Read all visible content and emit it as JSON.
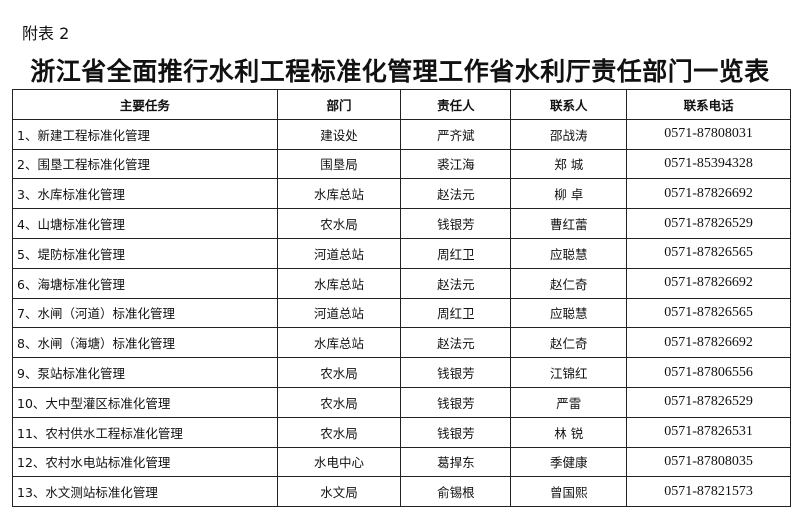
{
  "annex_label": "附表 2",
  "title": "浙江省全面推行水利工程标准化管理工作省水利厅责任部门一览表",
  "table": {
    "headers": [
      "主要任务",
      "部门",
      "责任人",
      "联系人",
      "联系电话"
    ],
    "rows": [
      [
        "1、新建工程标准化管理",
        "建设处",
        "严齐斌",
        "邵战涛",
        "0571-87808031"
      ],
      [
        "2、围垦工程标准化管理",
        "围垦局",
        "裘江海",
        "郑 城",
        "0571-85394328"
      ],
      [
        "3、水库标准化管理",
        "水库总站",
        "赵法元",
        "柳 卓",
        "0571-87826692"
      ],
      [
        "4、山塘标准化管理",
        "农水局",
        "钱银芳",
        "曹红蕾",
        "0571-87826529"
      ],
      [
        "5、堤防标准化管理",
        "河道总站",
        "周红卫",
        "应聪慧",
        "0571-87826565"
      ],
      [
        "6、海塘标准化管理",
        "水库总站",
        "赵法元",
        "赵仁奇",
        "0571-87826692"
      ],
      [
        "7、水闸（河道）标准化管理",
        "河道总站",
        "周红卫",
        "应聪慧",
        "0571-87826565"
      ],
      [
        "8、水闸（海塘）标准化管理",
        "水库总站",
        "赵法元",
        "赵仁奇",
        "0571-87826692"
      ],
      [
        "9、泵站标准化管理",
        "农水局",
        "钱银芳",
        "江锦红",
        "0571-87806556"
      ],
      [
        "10、大中型灌区标准化管理",
        "农水局",
        "钱银芳",
        "严雷",
        "0571-87826529"
      ],
      [
        "11、农村供水工程标准化管理",
        "农水局",
        "钱银芳",
        "林 锐",
        "0571-87826531"
      ],
      [
        "12、农村水电站标准化管理",
        "水电中心",
        "葛捍东",
        "季健康",
        "0571-87808035"
      ],
      [
        "13、水文测站标准化管理",
        "水文局",
        "俞锡根",
        "曾国熙",
        "0571-87821573"
      ]
    ]
  }
}
